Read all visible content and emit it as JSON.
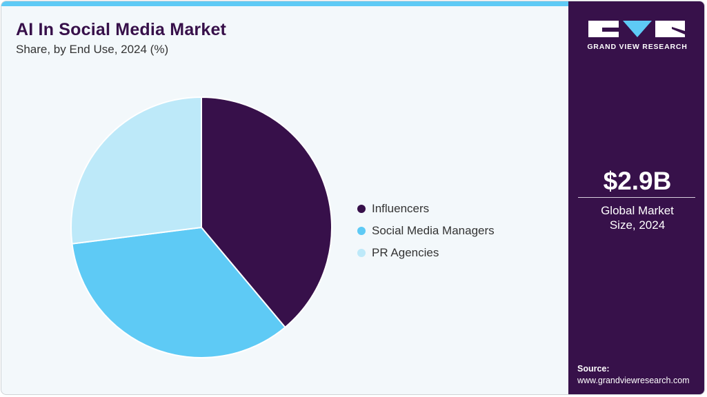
{
  "header": {
    "title": "AI In Social Media Market",
    "subtitle": "Share, by End Use, 2024 (%)"
  },
  "sidebar": {
    "brand": "GRAND VIEW RESEARCH",
    "market_size_value": "$2.9B",
    "market_size_label": "Global Market Size, 2024",
    "source_label": "Source:",
    "source_url": "www.grandviewresearch.com"
  },
  "colors": {
    "accent_purple": "#37104a",
    "sky_blue": "#5ecaf5",
    "light_blue": "#bde9f9",
    "background": "#f3f8fb"
  },
  "legend": [
    {
      "label": "Influencers",
      "color": "#37104a"
    },
    {
      "label": "Social Media Managers",
      "color": "#5ecaf5"
    },
    {
      "label": "PR Agencies",
      "color": "#bde9f9"
    }
  ],
  "chart_data": {
    "type": "pie",
    "title": "AI In Social Media Market",
    "subtitle": "Share, by End Use, 2024 (%)",
    "categories": [
      "Influencers",
      "Social Media Managers",
      "PR Agencies"
    ],
    "values": [
      38.9,
      34.1,
      27.0
    ],
    "colors": [
      "#37104a",
      "#5ecaf5",
      "#bde9f9"
    ],
    "start_angle": "12 o'clock, clockwise",
    "legend_position": "right",
    "annotation": "$2.9B Global Market Size, 2024"
  }
}
